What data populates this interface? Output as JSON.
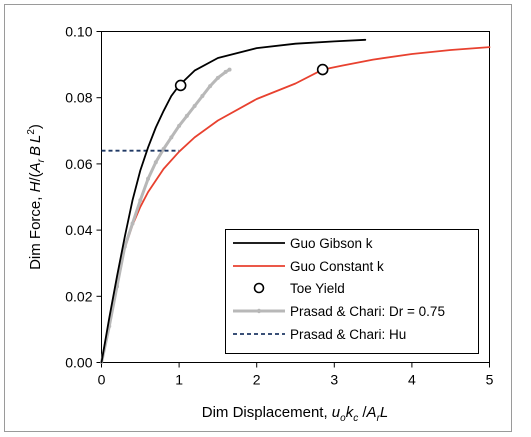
{
  "chart_data": {
    "type": "line",
    "xlabel": {
      "pre": "Dim Displacement, ",
      "u": "u",
      "u_sub": "o",
      "k": "k",
      "k_sub": "c",
      "slash": " /",
      "A": "A",
      "A_sub": "r",
      "L": "L"
    },
    "ylabel": {
      "pre": "Dim Force, ",
      "H": "H",
      "slash": "/(",
      "A": "A",
      "A_sub": "r",
      "B": "B",
      "L": "L",
      "L_sup": "2",
      "close": ")"
    },
    "xlim": [
      0,
      5
    ],
    "ylim": [
      0,
      0.1
    ],
    "x_ticks": [
      0,
      1,
      2,
      3,
      4,
      5
    ],
    "x_tick_labels": [
      "0",
      "1",
      "2",
      "3",
      "4",
      "5"
    ],
    "y_ticks": [
      0,
      0.02,
      0.04,
      0.06,
      0.08,
      0.1
    ],
    "y_tick_labels": [
      "0.00",
      "0.02",
      "0.04",
      "0.06",
      "0.08",
      "0.10"
    ],
    "grid": false,
    "legend_position": "bottom-right",
    "series": [
      {
        "name": "Guo Gibson k",
        "color": "#000000",
        "style": "solid",
        "x": [
          0,
          0.1,
          0.2,
          0.3,
          0.4,
          0.5,
          0.6,
          0.7,
          0.8,
          0.9,
          1.0,
          1.2,
          1.5,
          2.0,
          2.5,
          3.0,
          3.4
        ],
        "y": [
          0,
          0.0135,
          0.026,
          0.038,
          0.049,
          0.058,
          0.065,
          0.071,
          0.076,
          0.0805,
          0.0837,
          0.0882,
          0.092,
          0.095,
          0.0963,
          0.097,
          0.0975
        ]
      },
      {
        "name": "Guo Constant k",
        "color": "#e8412f",
        "style": "solid",
        "x": [
          0,
          0.1,
          0.2,
          0.3,
          0.4,
          0.5,
          0.6,
          0.8,
          1.0,
          1.2,
          1.5,
          2.0,
          2.5,
          2.85,
          3.1,
          3.5,
          4.0,
          4.5,
          5.0
        ],
        "y": [
          0,
          0.0125,
          0.0245,
          0.0345,
          0.0415,
          0.047,
          0.0515,
          0.0585,
          0.0637,
          0.068,
          0.0731,
          0.0796,
          0.0843,
          0.0885,
          0.0897,
          0.0915,
          0.0932,
          0.0944,
          0.0953
        ]
      },
      {
        "name": "Toe Yield",
        "color": "#000000",
        "style": "marker",
        "x": [
          1.02,
          2.85
        ],
        "y": [
          0.0837,
          0.0885
        ]
      },
      {
        "name": "Prasad & Chari: Dr = 0.75",
        "color": "#b8b8b8",
        "style": "solid-marker",
        "x": [
          0,
          0.1,
          0.2,
          0.3,
          0.4,
          0.5,
          0.6,
          0.7,
          0.8,
          0.9,
          1.0,
          1.1,
          1.2,
          1.3,
          1.4,
          1.5,
          1.6,
          1.65
        ],
        "y": [
          0,
          0.011,
          0.023,
          0.035,
          0.042,
          0.049,
          0.0555,
          0.0605,
          0.0645,
          0.068,
          0.0715,
          0.0745,
          0.0775,
          0.0805,
          0.0835,
          0.086,
          0.0878,
          0.0885
        ]
      },
      {
        "name": "Prasad & Chari: Hu",
        "color": "#1f3864",
        "style": "dashed",
        "x": [
          0,
          1.0
        ],
        "y": [
          0.064,
          0.064
        ]
      }
    ]
  }
}
